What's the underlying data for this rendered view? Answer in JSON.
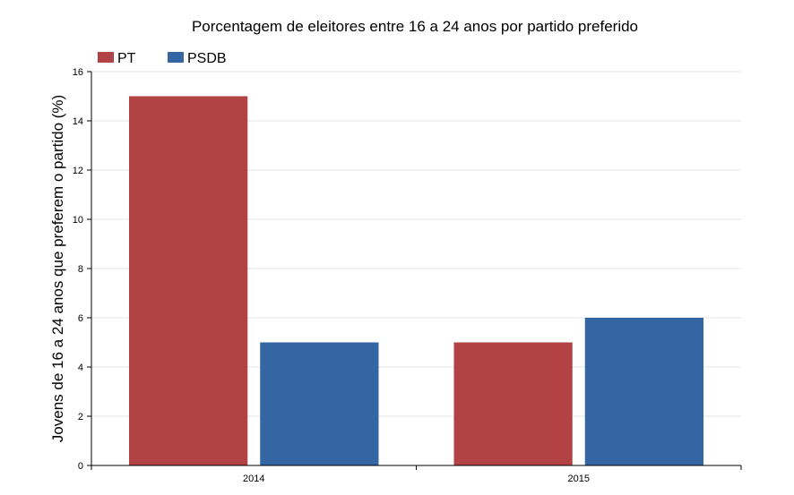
{
  "chart_data": {
    "type": "bar",
    "title": "Porcentagem de eleitores entre 16 a 24 anos por partido preferido",
    "xlabel": "",
    "ylabel": "Jovens de 16 a 24 anos que preferem o partido (%)",
    "categories": [
      "2014",
      "2015"
    ],
    "series": [
      {
        "name": "PT",
        "color": "#b34245",
        "values": [
          15,
          5
        ]
      },
      {
        "name": "PSDB",
        "color": "#3366a3",
        "values": [
          5,
          6
        ]
      }
    ],
    "ylim": [
      0,
      16
    ],
    "yticks": [
      0,
      2,
      4,
      6,
      8,
      10,
      12,
      14,
      16
    ],
    "grid": true,
    "legend_position": "top-left"
  }
}
